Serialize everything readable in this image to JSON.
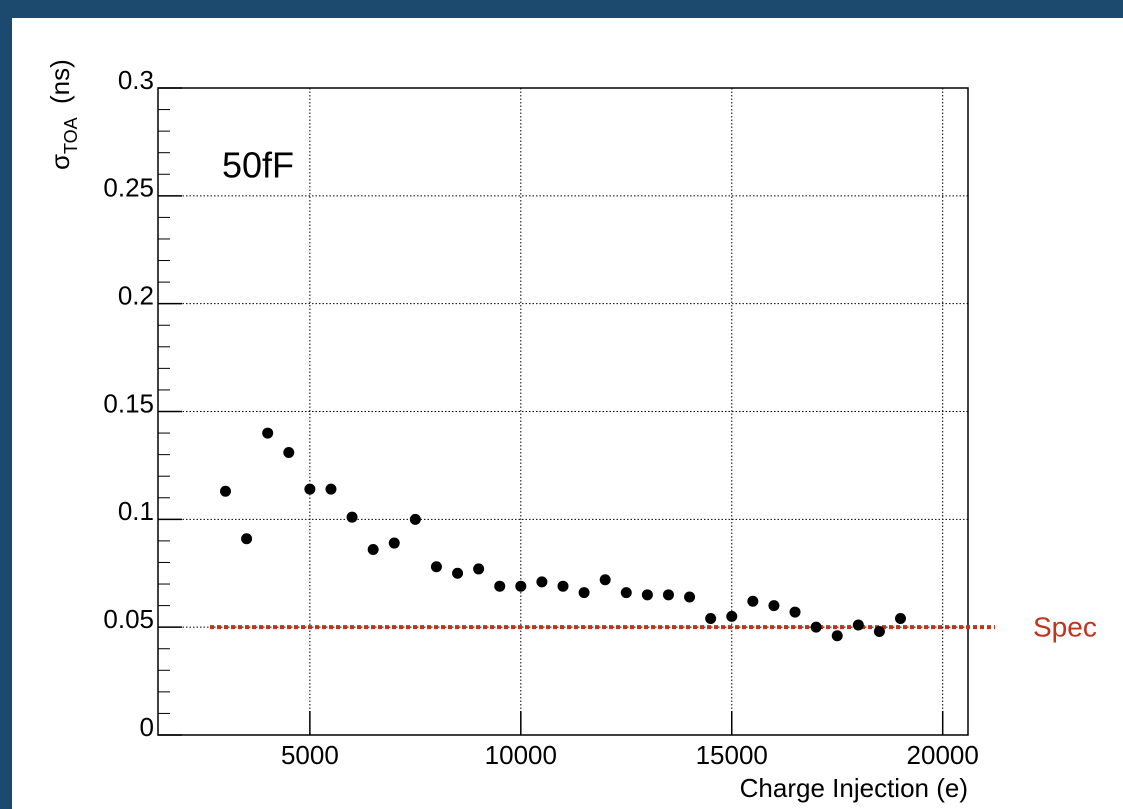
{
  "chart_data": {
    "type": "scatter",
    "annotation": "50fF",
    "xlabel": "Charge Injection (e)",
    "ylabel_symbol": "σ",
    "ylabel_subscript": "TOA",
    "ylabel_unit": "(ns)",
    "x": [
      3000,
      3500,
      4000,
      4500,
      5000,
      5500,
      6000,
      6500,
      7000,
      7500,
      8000,
      8500,
      9000,
      9500,
      10000,
      10500,
      11000,
      11500,
      12000,
      12500,
      13000,
      13500,
      14000,
      14500,
      15000,
      15500,
      16000,
      16500,
      17000,
      17500,
      18000,
      18500,
      19000
    ],
    "values": [
      0.113,
      0.091,
      0.14,
      0.131,
      0.114,
      0.114,
      0.101,
      0.086,
      0.089,
      0.1,
      0.078,
      0.075,
      0.077,
      0.069,
      0.069,
      0.071,
      0.069,
      0.066,
      0.072,
      0.066,
      0.065,
      0.065,
      0.064,
      0.054,
      0.055,
      0.062,
      0.06,
      0.057,
      0.05,
      0.046,
      0.051,
      0.048,
      0.054
    ],
    "color": "#000000",
    "xlim": [
      1400,
      20600
    ],
    "xticks": [
      5000,
      10000,
      15000,
      20000
    ],
    "ylim": [
      0,
      0.3
    ],
    "yticks": [
      0,
      0.05,
      0.1,
      0.15,
      0.2,
      0.25,
      0.3
    ],
    "grid": true,
    "spec_line": {
      "value": 0.05,
      "label": "Spec",
      "color": "#c0341d"
    }
  }
}
